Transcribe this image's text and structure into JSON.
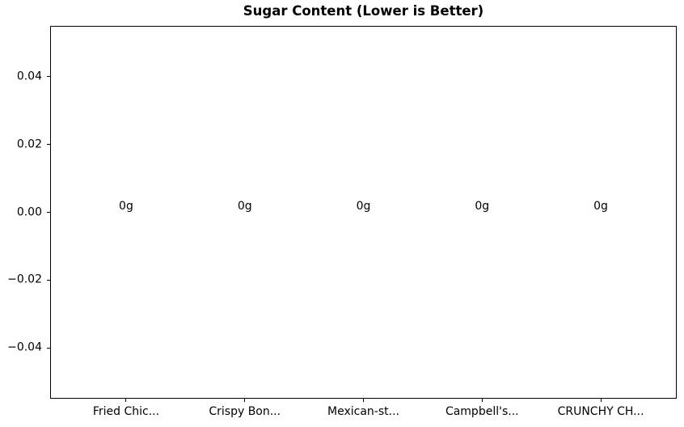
{
  "figure": {
    "background_color": "#ffffff",
    "text_color": "#000000",
    "spine_color": "#000000"
  },
  "chart_data": {
    "type": "bar",
    "title": "Sugar Content (Lower is Better)",
    "categories": [
      "Fried Chic...",
      "Crispy Bon...",
      "Mexican-st...",
      "Campbell's...",
      "CRUNCHY CH..."
    ],
    "values": [
      0,
      0,
      0,
      0,
      0
    ],
    "bar_value_labels": [
      "0g",
      "0g",
      "0g",
      "0g",
      "0g"
    ],
    "xlabel": "",
    "ylabel": "",
    "xlim": [
      -0.64,
      4.64
    ],
    "ylim": [
      -0.055,
      0.055
    ],
    "yticks": [
      {
        "value": 0.04,
        "label": "0.04"
      },
      {
        "value": 0.02,
        "label": "0.02"
      },
      {
        "value": 0.0,
        "label": "0.00"
      },
      {
        "value": -0.02,
        "label": "−0.02"
      },
      {
        "value": -0.04,
        "label": "−0.04"
      }
    ],
    "grid": false,
    "legend": null
  }
}
